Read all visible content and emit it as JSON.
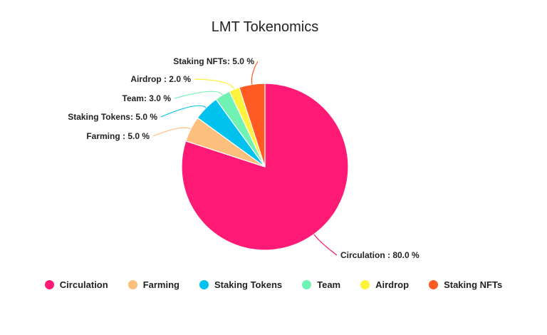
{
  "chart_data": {
    "type": "pie",
    "title": "LMT Tokenomics",
    "categories": [
      "Circulation",
      "Farming",
      "Staking Tokens",
      "Team",
      "Airdrop",
      "Staking NFTs"
    ],
    "values": [
      80.0,
      5.0,
      5.0,
      3.0,
      2.0,
      5.0
    ],
    "colors": [
      "#ff1a75",
      "#fcbf7c",
      "#00c2ee",
      "#70f2b5",
      "#fff23d",
      "#ff5b22"
    ],
    "slice_labels": [
      "Circulation : 80.0 %",
      "Farming : 5.0 %",
      "Staking Tokens: 5.0 %",
      "Team: 3.0 %",
      "Airdrop : 2.0 %",
      "Staking NFTs: 5.0 %"
    ],
    "legend_position": "bottom"
  }
}
